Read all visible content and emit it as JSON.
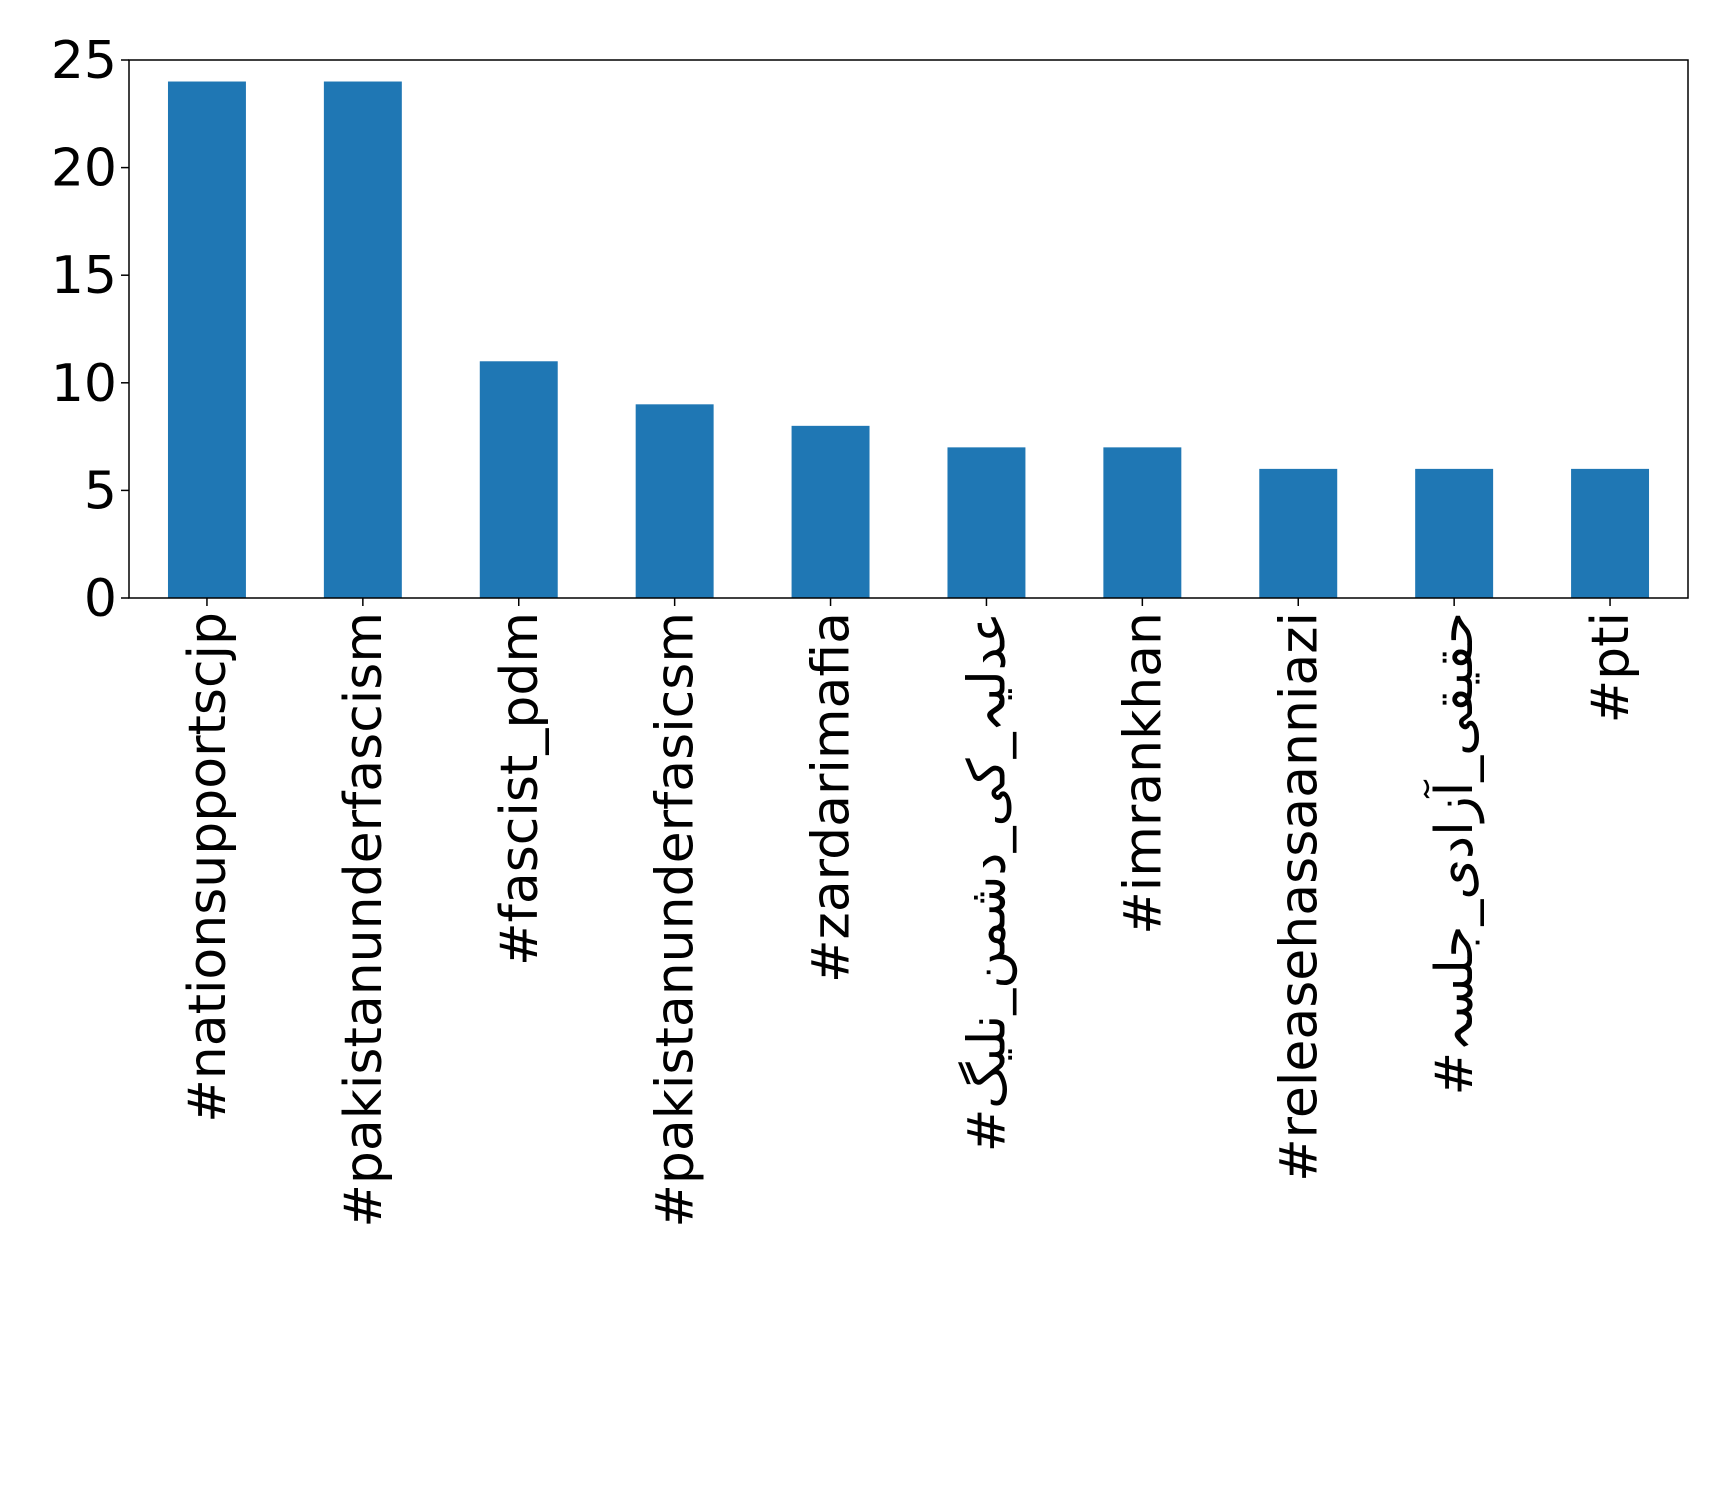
{
  "chart_data": {
    "type": "bar",
    "categories": [
      "#nationsupportscjp",
      "#pakistanunderfascism",
      "#fascist_pdm",
      "#pakistanunderfasicsm",
      "#zardarimafia",
      "#عدلیہ_کی_دشمن_نلیگ",
      "#imrankhan",
      "#releasehassaanniazi",
      "#حقیقی_آزادی_جلسہ",
      "#pti"
    ],
    "values": [
      24,
      24,
      11,
      9,
      8,
      7,
      7,
      6,
      6,
      6
    ],
    "color": "#1f77b4",
    "ylim": [
      0,
      25
    ],
    "yticks": [
      0,
      5,
      10,
      15,
      20,
      25
    ]
  }
}
